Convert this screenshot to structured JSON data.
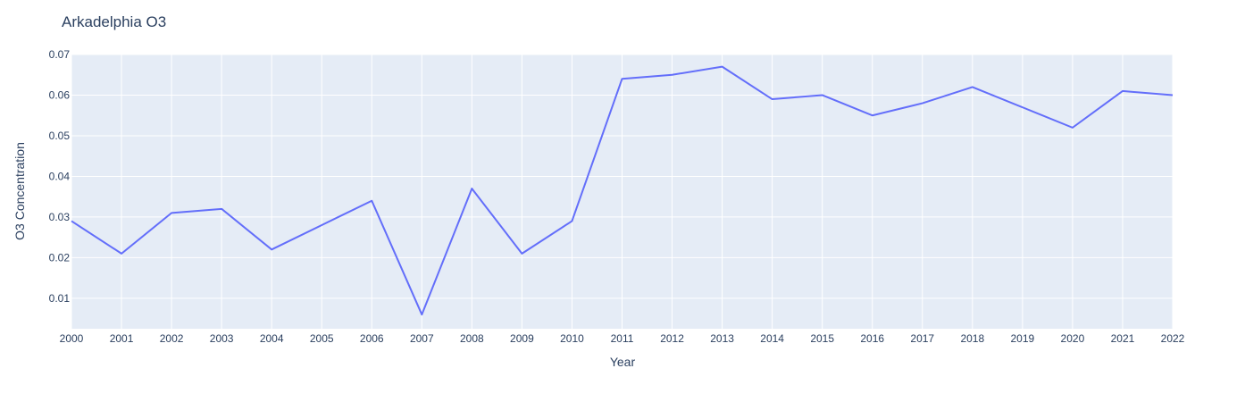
{
  "chart_data": {
    "type": "line",
    "title": "Arkadelphia O3",
    "xlabel": "Year",
    "ylabel": "O3 Concentration",
    "x": [
      "2000",
      "2001",
      "2002",
      "2003",
      "2004",
      "2005",
      "2006",
      "2007",
      "2008",
      "2009",
      "2010",
      "2011",
      "2012",
      "2013",
      "2014",
      "2015",
      "2016",
      "2017",
      "2018",
      "2019",
      "2020",
      "2021",
      "2022"
    ],
    "series": [
      {
        "values": [
          0.029,
          0.021,
          0.031,
          0.032,
          0.022,
          0.028,
          0.034,
          0.006,
          0.037,
          0.021,
          0.029,
          0.064,
          0.065,
          0.067,
          0.059,
          0.06,
          0.055,
          0.058,
          0.062,
          0.057,
          0.052,
          0.061,
          0.06
        ],
        "color": "#636efa"
      }
    ],
    "xlim": [
      2000,
      2022
    ],
    "ylim": [
      0.0025,
      0.07
    ],
    "yticks": [
      "0.01",
      "0.02",
      "0.03",
      "0.04",
      "0.05",
      "0.06",
      "0.07"
    ],
    "grid": true,
    "plot_bgcolor": "#e5ecf6",
    "legend": "none"
  }
}
